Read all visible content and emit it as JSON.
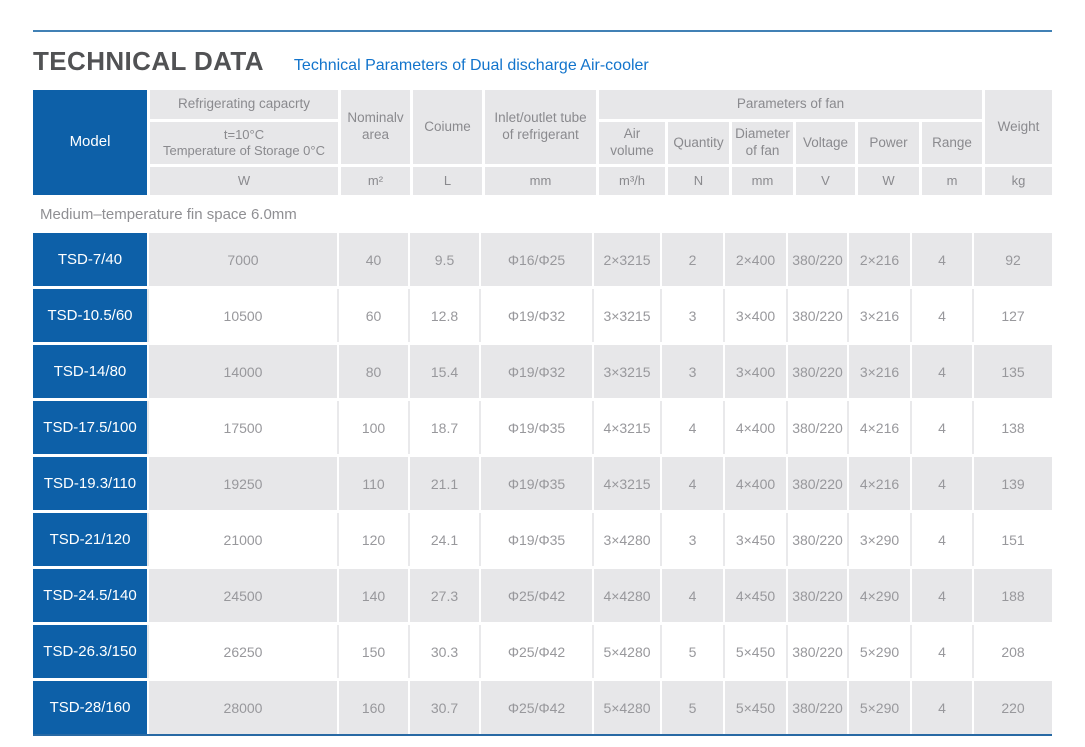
{
  "header": {
    "title": "TECHNICAL DATA",
    "subtitle": "Technical Parameters of Dual discharge Air-cooler"
  },
  "table": {
    "head": {
      "model": "Model",
      "refrigerating_capacity": "Refrigerating capacrty",
      "refrigerating_condition_line1": "t=10°C",
      "refrigerating_condition_line2": "Temperature of Storage 0°C",
      "nominal_area": "Nominalv area",
      "coiume": "Coiume",
      "inlet_outlet_tube": "Inlet/outlet tube of refrigerant",
      "parameters_of_fan": "Parameters of fan",
      "fan_columns": [
        "Air volume",
        "Quantity",
        "Diameter of fan",
        "Voltage",
        "Power",
        "Range"
      ],
      "weight": "Weight",
      "units": {
        "capacity": "W",
        "area": "m²",
        "coiume": "L",
        "tube": "mm",
        "air_volume": "m³/h",
        "quantity": "N",
        "fan_diameter": "mm",
        "voltage": "V",
        "power": "W",
        "range": "m",
        "weight": "kg"
      }
    },
    "section_label": "Medium–temperature fin space 6.0mm",
    "column_keys": [
      "capacity",
      "area",
      "coiume",
      "tube",
      "air-volume",
      "quantity",
      "fan-diameter",
      "voltage",
      "power",
      "range",
      "weight"
    ],
    "rows": [
      {
        "model": "TSD-7/40",
        "values": [
          "7000",
          "40",
          "9.5",
          "Φ16/Φ25",
          "2×3215",
          "2",
          "2×400",
          "380/220",
          "2×216",
          "4",
          "92"
        ]
      },
      {
        "model": "TSD-10.5/60",
        "values": [
          "10500",
          "60",
          "12.8",
          "Φ19/Φ32",
          "3×3215",
          "3",
          "3×400",
          "380/220",
          "3×216",
          "4",
          "127"
        ]
      },
      {
        "model": "TSD-14/80",
        "values": [
          "14000",
          "80",
          "15.4",
          "Φ19/Φ32",
          "3×3215",
          "3",
          "3×400",
          "380/220",
          "3×216",
          "4",
          "135"
        ]
      },
      {
        "model": "TSD-17.5/100",
        "values": [
          "17500",
          "100",
          "18.7",
          "Φ19/Φ35",
          "4×3215",
          "4",
          "4×400",
          "380/220",
          "4×216",
          "4",
          "138"
        ]
      },
      {
        "model": "TSD-19.3/110",
        "values": [
          "19250",
          "110",
          "21.1",
          "Φ19/Φ35",
          "4×3215",
          "4",
          "4×400",
          "380/220",
          "4×216",
          "4",
          "139"
        ]
      },
      {
        "model": "TSD-21/120",
        "values": [
          "21000",
          "120",
          "24.1",
          "Φ19/Φ35",
          "3×4280",
          "3",
          "3×450",
          "380/220",
          "3×290",
          "4",
          "151"
        ]
      },
      {
        "model": "TSD-24.5/140",
        "values": [
          "24500",
          "140",
          "27.3",
          "Φ25/Φ42",
          "4×4280",
          "4",
          "4×450",
          "380/220",
          "4×290",
          "4",
          "188"
        ]
      },
      {
        "model": "TSD-26.3/150",
        "values": [
          "26250",
          "150",
          "30.3",
          "Φ25/Φ42",
          "5×4280",
          "5",
          "5×450",
          "380/220",
          "5×290",
          "4",
          "208"
        ]
      },
      {
        "model": "TSD-28/160",
        "values": [
          "28000",
          "160",
          "30.7",
          "Φ25/Φ42",
          "5×4280",
          "5",
          "5×450",
          "380/220",
          "5×290",
          "4",
          "220"
        ]
      }
    ]
  },
  "colors": {
    "model_blue": "#0d60a8",
    "accent_blue": "#1274cc",
    "top_rule_blue": "#4181b5",
    "bottom_rule_blue": "#2769a4",
    "cell_gray": "#e7e7e9",
    "text_gray": "#98989c",
    "title_gray": "#515254"
  }
}
